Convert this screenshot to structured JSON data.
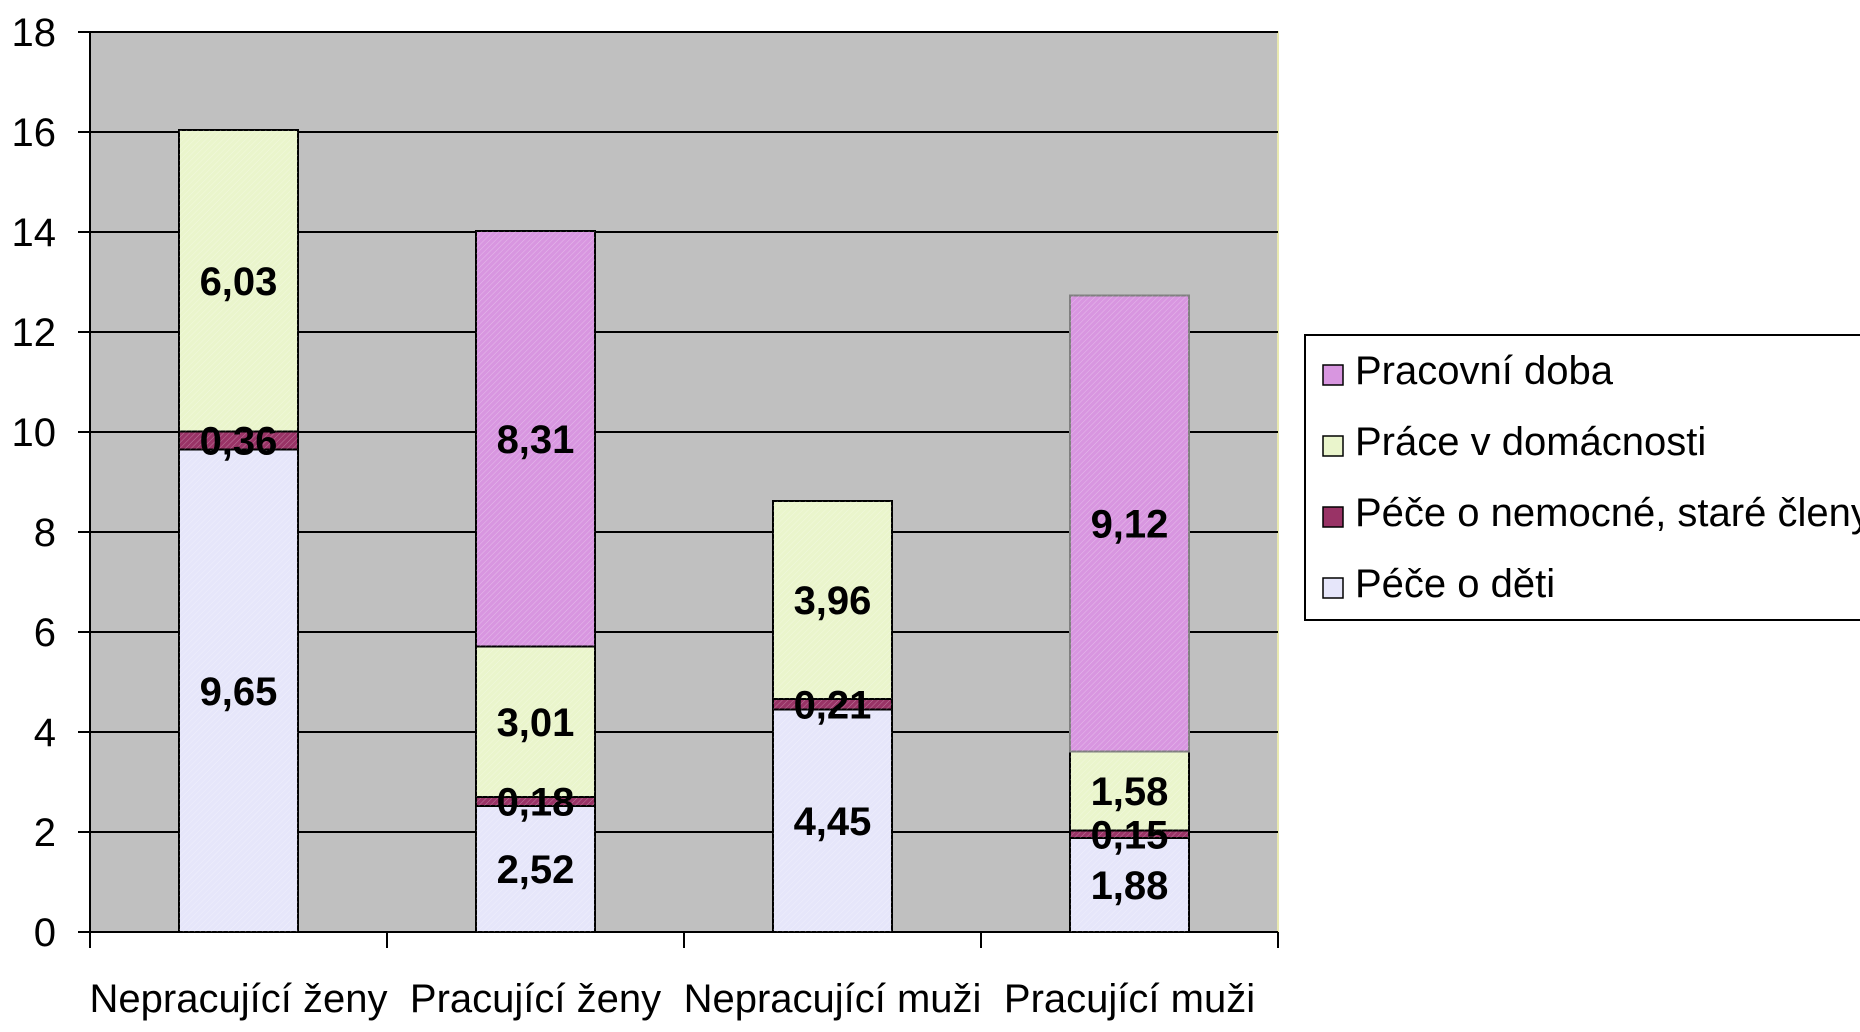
{
  "chart_data": {
    "type": "bar",
    "stacked": true,
    "title": "",
    "xlabel": "",
    "ylabel": "",
    "categories": [
      "Nepracující ženy",
      "Pracující ženy",
      "Nepracující muži",
      "Pracující muži"
    ],
    "ylim": [
      0,
      18
    ],
    "yticks": [
      0,
      2,
      4,
      6,
      8,
      10,
      12,
      14,
      16,
      18
    ],
    "grid": true,
    "legend_position": "right",
    "plot_background": "#c0c0c0",
    "series": [
      {
        "name": "Péče o děti",
        "color": "#e6e6fa",
        "values": [
          9.65,
          2.52,
          4.45,
          1.88
        ],
        "labels": [
          "9,65",
          "2,52",
          "4,45",
          "1,88"
        ]
      },
      {
        "name": "Péče o nemocné, staré členy",
        "color": "#993366",
        "values": [
          0.36,
          0.18,
          0.21,
          0.15
        ],
        "labels": [
          "0,36",
          "0,18",
          "0,21",
          "0,15"
        ]
      },
      {
        "name": "Práce v domácnosti",
        "color": "#eaf5cc",
        "values": [
          6.03,
          3.01,
          3.96,
          1.58
        ],
        "labels": [
          "6,03",
          "3,01",
          "3,96",
          "1,58"
        ]
      },
      {
        "name": "Pracovní doba",
        "color": "#d896e0",
        "values": [
          null,
          8.31,
          null,
          9.12
        ],
        "labels": [
          "",
          "8,31",
          "",
          "9,12"
        ]
      }
    ],
    "legend_order": [
      "Pracovní doba",
      "Práce v domácnosti",
      "Péče o nemocné, staré členy",
      "Péče o děti"
    ]
  }
}
